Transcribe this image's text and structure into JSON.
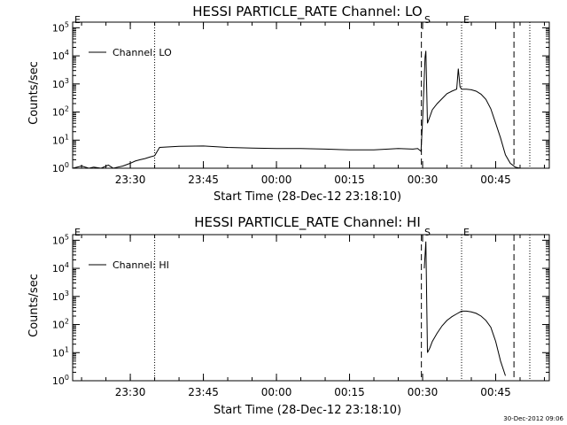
{
  "footer_timestamp": "30-Dec-2012 09:06",
  "chart_data": [
    {
      "type": "line",
      "title": "HESSI PARTICLE_RATE Channel: LO",
      "xlabel": "Start Time (28-Dec-12 23:18:10)",
      "ylabel": "Counts/sec",
      "yscale": "log",
      "xlim": [
        "23:18:10",
        "00:56:00"
      ],
      "ylim": [
        1,
        100000
      ],
      "xticks": [
        "23:30",
        "23:45",
        "00:00",
        "00:15",
        "00:30",
        "00:45"
      ],
      "yticks": [
        "10^0",
        "10^1",
        "10^2",
        "10^3",
        "10^4",
        "10^5"
      ],
      "legend_position": "top-left",
      "series": [
        {
          "name": "Channel: LO",
          "x": [
            "23:18:10",
            "23:20:00",
            "23:21:30",
            "23:22:30",
            "23:24:00",
            "23:25:30",
            "23:26:30",
            "23:27:30",
            "23:28:30",
            "23:30:00",
            "23:31:00",
            "23:32:00",
            "23:33:00",
            "23:34:00",
            "23:35:00",
            "23:36:00",
            "23:40:00",
            "23:45:00",
            "23:50:00",
            "23:55:00",
            "00:00:00",
            "00:05:00",
            "00:10:00",
            "00:15:00",
            "00:20:00",
            "00:25:00",
            "00:28:00",
            "00:29:00",
            "00:29:40",
            "00:30:00",
            "00:30:30",
            "00:30:40",
            "00:31:00",
            "00:31:30",
            "00:32:00",
            "00:33:00",
            "00:34:00",
            "00:35:00",
            "00:36:00",
            "00:37:00",
            "00:37:20",
            "00:37:40",
            "00:38:00",
            "00:39:00",
            "00:40:00",
            "00:41:00",
            "00:42:00",
            "00:43:00",
            "00:44:00",
            "00:45:00",
            "00:46:00",
            "00:47:00",
            "00:48:00",
            "00:49:00",
            "00:50:00"
          ],
          "y": [
            1,
            1.2,
            1,
            1.1,
            1,
            1.3,
            1,
            1.1,
            1.2,
            1.5,
            1.8,
            2,
            2.2,
            2.5,
            2.8,
            5.5,
            6,
            6.2,
            5.5,
            5.2,
            5,
            5,
            4.8,
            4.5,
            4.5,
            5,
            4.8,
            5,
            4,
            50,
            9000,
            15000,
            40,
            70,
            120,
            200,
            300,
            450,
            550,
            650,
            3500,
            800,
            650,
            650,
            620,
            550,
            430,
            280,
            130,
            40,
            12,
            3,
            1.5,
            1.1,
            1
          ]
        }
      ],
      "markers": {
        "dotted": [
          "23:35:00",
          "00:38:00",
          "00:52:00"
        ],
        "dashed": [
          "00:29:45",
          "00:48:45"
        ],
        "labels": [
          {
            "text": "E",
            "at": "23:18:10"
          },
          {
            "text": "S",
            "at": "00:30:00"
          },
          {
            "text": "E",
            "at": "00:38:00"
          }
        ]
      }
    },
    {
      "type": "line",
      "title": "HESSI PARTICLE_RATE Channel: HI",
      "xlabel": "Start Time (28-Dec-12 23:18:10)",
      "ylabel": "Counts/sec",
      "yscale": "log",
      "xlim": [
        "23:18:10",
        "00:56:00"
      ],
      "ylim": [
        1,
        100000
      ],
      "xticks": [
        "23:30",
        "23:45",
        "00:00",
        "00:15",
        "00:30",
        "00:45"
      ],
      "yticks": [
        "10^0",
        "10^1",
        "10^2",
        "10^3",
        "10^4",
        "10^5"
      ],
      "legend_position": "top-left",
      "series": [
        {
          "name": "Channel: HI",
          "x": [
            "00:30:20",
            "00:30:40",
            "00:31:00",
            "00:31:30",
            "00:32:00",
            "00:33:00",
            "00:34:00",
            "00:35:00",
            "00:36:00",
            "00:37:00",
            "00:38:00",
            "00:39:00",
            "00:40:00",
            "00:41:00",
            "00:42:00",
            "00:43:00",
            "00:44:00",
            "00:45:00",
            "00:46:00",
            "00:47:00"
          ],
          "y": [
            10000,
            90000,
            10,
            15,
            25,
            50,
            90,
            140,
            190,
            240,
            300,
            300,
            280,
            250,
            200,
            140,
            80,
            25,
            5,
            1.5
          ]
        }
      ],
      "markers": {
        "dotted": [
          "23:35:00",
          "00:38:00",
          "00:52:00"
        ],
        "dashed": [
          "00:29:45",
          "00:48:45"
        ],
        "labels": [
          {
            "text": "E",
            "at": "23:18:10"
          },
          {
            "text": "S",
            "at": "00:30:00"
          },
          {
            "text": "E",
            "at": "00:38:00"
          }
        ]
      }
    }
  ]
}
